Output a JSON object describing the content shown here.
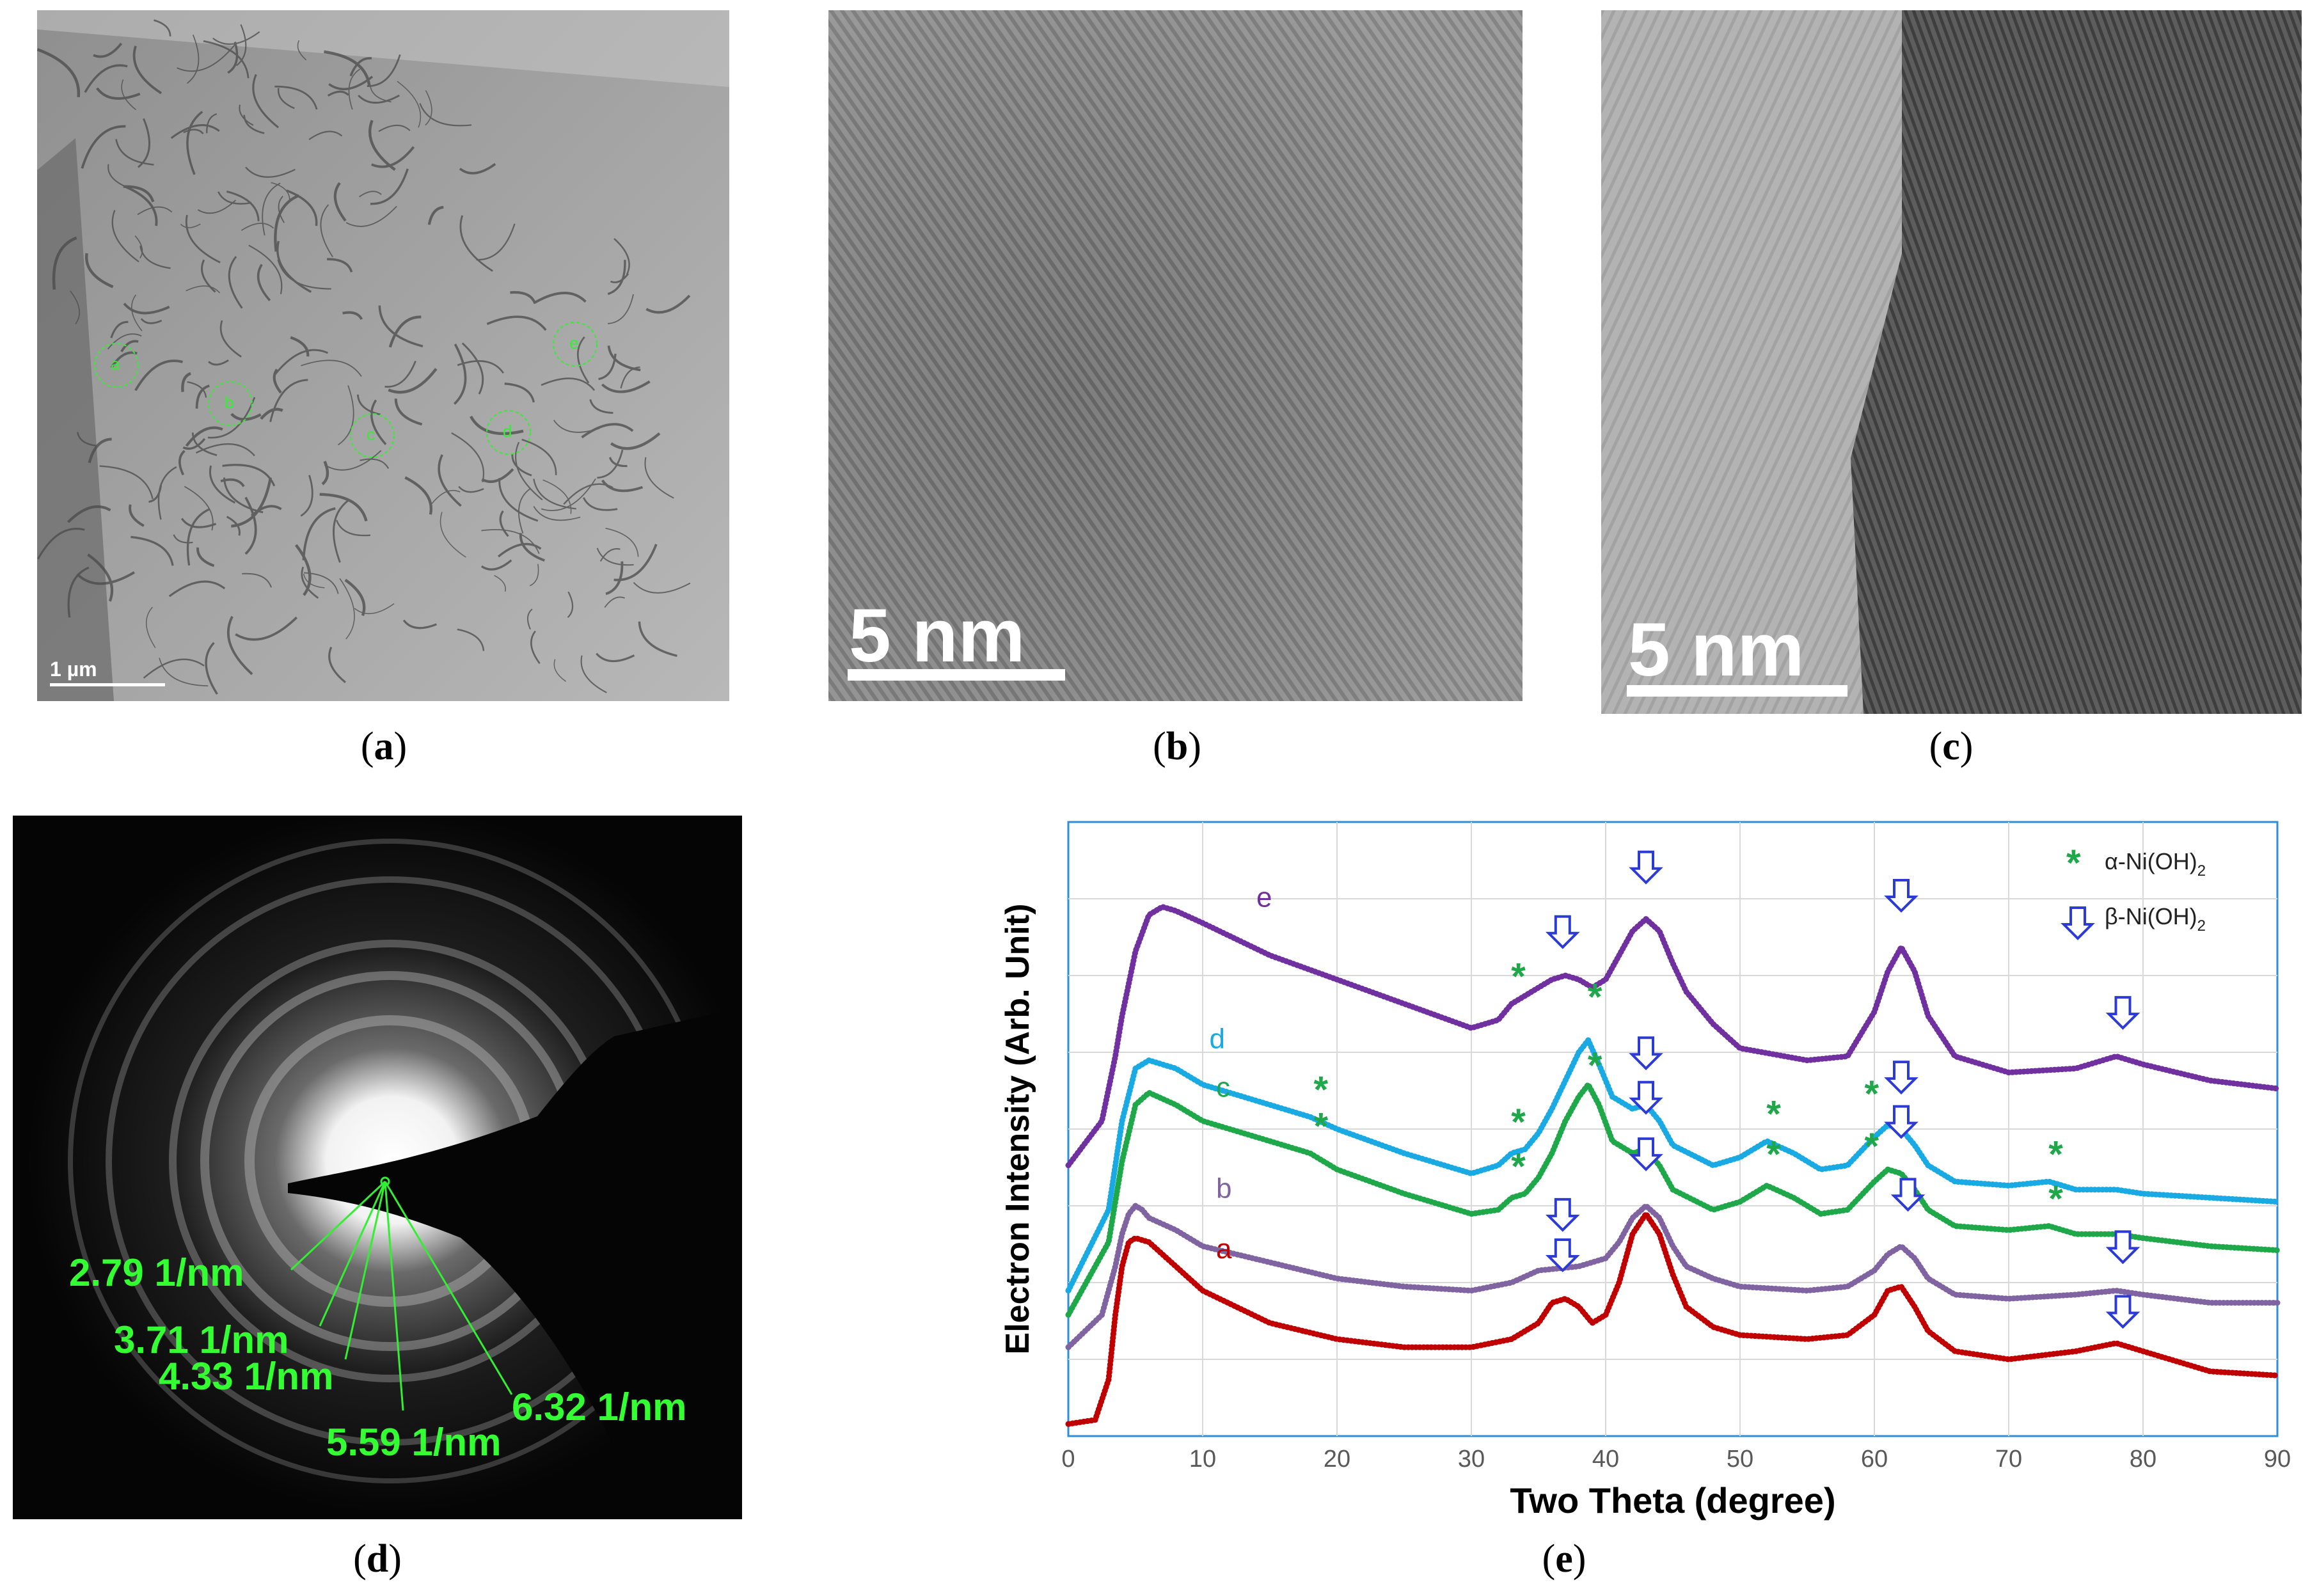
{
  "panels": {
    "a": {
      "caption": "a",
      "scale_bar": "1 µm",
      "regions": [
        "a",
        "b",
        "c",
        "d",
        "e"
      ]
    },
    "b": {
      "caption": "b",
      "scale_bar": "5 nm"
    },
    "c": {
      "caption": "c",
      "scale_bar": "5 nm"
    },
    "d": {
      "caption": "d",
      "rings": [
        "2.79 1/nm",
        "3.71 1/nm",
        "4.33 1/nm",
        "5.59 1/nm",
        "6.32 1/nm"
      ]
    },
    "e": {
      "caption": "e"
    }
  },
  "chart_data": {
    "type": "line",
    "xlabel": "Two Theta (degree)",
    "ylabel": "Electron Intensity (Arb. Unit)",
    "xlim": [
      0,
      90
    ],
    "xticks": [
      0,
      10,
      20,
      30,
      40,
      50,
      60,
      70,
      80,
      90
    ],
    "grid": true,
    "legend": {
      "position": "top-right",
      "entries": [
        {
          "marker": "*",
          "label": "α-Ni(OH)",
          "sub": "2",
          "color": "#1fa84a"
        },
        {
          "marker": "⇩",
          "label": "β-Ni(OH)",
          "sub": "2",
          "color": "#2c3ad6"
        }
      ]
    },
    "series": [
      {
        "name": "a",
        "color": "#c00000",
        "x": [
          0,
          2,
          3,
          3.5,
          4,
          4.5,
          5,
          6,
          8,
          10,
          15,
          20,
          25,
          30,
          33,
          35,
          36,
          37,
          38,
          39,
          40,
          41,
          42,
          43,
          44,
          45,
          46,
          48,
          50,
          55,
          58,
          60,
          61,
          62,
          63,
          64,
          66,
          70,
          75,
          78,
          80,
          85,
          90
        ],
        "y": [
          2.95,
          3.0,
          3.5,
          4.3,
          4.9,
          5.2,
          5.25,
          5.2,
          4.9,
          4.6,
          4.2,
          4.0,
          3.9,
          3.9,
          4.0,
          4.2,
          4.45,
          4.5,
          4.4,
          4.2,
          4.3,
          4.7,
          5.3,
          5.55,
          5.3,
          4.8,
          4.4,
          4.15,
          4.05,
          4.0,
          4.05,
          4.3,
          4.6,
          4.65,
          4.4,
          4.1,
          3.85,
          3.75,
          3.85,
          3.95,
          3.85,
          3.6,
          3.55
        ]
      },
      {
        "name": "b",
        "color": "#8064a2",
        "x": [
          0,
          2.5,
          3.5,
          4,
          4.5,
          5,
          5.5,
          6,
          8,
          10,
          15,
          20,
          25,
          30,
          33,
          35,
          38,
          40,
          41,
          42,
          43,
          44,
          45,
          46,
          48,
          50,
          55,
          58,
          60,
          61,
          62,
          63,
          64,
          66,
          70,
          75,
          78,
          80,
          85,
          90
        ],
        "y": [
          3.9,
          4.3,
          4.9,
          5.3,
          5.55,
          5.65,
          5.6,
          5.5,
          5.35,
          5.15,
          4.95,
          4.75,
          4.65,
          4.6,
          4.7,
          4.85,
          4.9,
          5.0,
          5.2,
          5.5,
          5.65,
          5.5,
          5.15,
          4.9,
          4.75,
          4.65,
          4.6,
          4.65,
          4.85,
          5.05,
          5.15,
          5.0,
          4.75,
          4.55,
          4.5,
          4.55,
          4.6,
          4.55,
          4.45,
          4.45
        ]
      },
      {
        "name": "c",
        "color": "#1fa84a",
        "x": [
          0,
          3,
          4,
          5,
          6,
          8,
          10,
          15,
          18,
          20,
          25,
          30,
          32,
          33,
          34,
          35,
          36,
          37,
          38,
          38.7,
          39.5,
          40.5,
          42,
          43,
          44,
          45,
          48,
          50,
          52,
          54,
          56,
          58,
          60,
          61,
          62,
          63,
          64,
          66,
          70,
          73,
          75,
          78,
          80,
          85,
          90
        ],
        "y": [
          4.3,
          5.2,
          6.2,
          6.9,
          7.05,
          6.9,
          6.7,
          6.45,
          6.3,
          6.1,
          5.8,
          5.55,
          5.6,
          5.75,
          5.8,
          6.0,
          6.3,
          6.7,
          7.0,
          7.15,
          6.9,
          6.45,
          6.3,
          6.35,
          6.15,
          5.85,
          5.6,
          5.7,
          5.9,
          5.75,
          5.55,
          5.6,
          5.95,
          6.1,
          6.05,
          5.85,
          5.6,
          5.4,
          5.35,
          5.4,
          5.3,
          5.3,
          5.25,
          5.15,
          5.1
        ]
      },
      {
        "name": "d",
        "color": "#19a9e3",
        "x": [
          0,
          3,
          4,
          5,
          6,
          8,
          10,
          15,
          18,
          20,
          25,
          30,
          32,
          33,
          34,
          35,
          36,
          37,
          38,
          38.7,
          39.5,
          40.5,
          42,
          43,
          44,
          45,
          48,
          50,
          52,
          54,
          56,
          58,
          60,
          61,
          62,
          63,
          64,
          66,
          70,
          73,
          75,
          78,
          80,
          85,
          90
        ],
        "y": [
          4.6,
          5.6,
          6.7,
          7.35,
          7.45,
          7.35,
          7.15,
          6.9,
          6.75,
          6.6,
          6.3,
          6.05,
          6.15,
          6.3,
          6.35,
          6.55,
          6.85,
          7.2,
          7.55,
          7.7,
          7.4,
          7.0,
          6.85,
          6.9,
          6.7,
          6.4,
          6.15,
          6.25,
          6.45,
          6.3,
          6.1,
          6.15,
          6.5,
          6.65,
          6.6,
          6.4,
          6.15,
          5.95,
          5.9,
          5.95,
          5.85,
          5.85,
          5.8,
          5.75,
          5.7
        ]
      },
      {
        "name": "e",
        "color": "#7030a0",
        "x": [
          0,
          2.5,
          3.5,
          4,
          5,
          6,
          7,
          8,
          10,
          15,
          20,
          25,
          30,
          32,
          33,
          34,
          35,
          36,
          37,
          38,
          39,
          40,
          41,
          42,
          43,
          44,
          45,
          46,
          48,
          50,
          55,
          58,
          60,
          61,
          62,
          63,
          64,
          66,
          70,
          75,
          78,
          80,
          85,
          90
        ],
        "y": [
          6.15,
          6.7,
          7.5,
          8.0,
          8.8,
          9.25,
          9.35,
          9.3,
          9.15,
          8.75,
          8.45,
          8.15,
          7.85,
          7.95,
          8.15,
          8.25,
          8.35,
          8.45,
          8.5,
          8.45,
          8.35,
          8.45,
          8.75,
          9.05,
          9.2,
          9.05,
          8.65,
          8.3,
          7.9,
          7.6,
          7.45,
          7.5,
          8.05,
          8.55,
          8.85,
          8.55,
          8.0,
          7.5,
          7.3,
          7.35,
          7.5,
          7.4,
          7.2,
          7.1
        ]
      }
    ],
    "markers": {
      "alpha": [
        {
          "x": 33.5,
          "y": 8.55
        },
        {
          "x": 39.2,
          "y": 8.3
        },
        {
          "x": 18.8,
          "y": 7.15
        },
        {
          "x": 33.5,
          "y": 6.75
        },
        {
          "x": 39.2,
          "y": 7.45
        },
        {
          "x": 52.5,
          "y": 6.85
        },
        {
          "x": 59.8,
          "y": 7.1
        },
        {
          "x": 73.5,
          "y": 6.35
        },
        {
          "x": 18.8,
          "y": 6.7
        },
        {
          "x": 33.5,
          "y": 6.2
        },
        {
          "x": 52.5,
          "y": 6.35
        },
        {
          "x": 59.8,
          "y": 6.45
        },
        {
          "x": 73.5,
          "y": 5.8
        }
      ],
      "beta": [
        {
          "x": 36.8,
          "y": 8.85
        },
        {
          "x": 43.0,
          "y": 9.65
        },
        {
          "x": 62.0,
          "y": 9.3
        },
        {
          "x": 78.5,
          "y": 7.85
        },
        {
          "x": 43.0,
          "y": 7.35
        },
        {
          "x": 62.0,
          "y": 7.05
        },
        {
          "x": 43.0,
          "y": 6.8
        },
        {
          "x": 62.0,
          "y": 6.5
        },
        {
          "x": 36.8,
          "y": 5.35
        },
        {
          "x": 43.0,
          "y": 6.1
        },
        {
          "x": 62.5,
          "y": 5.6
        },
        {
          "x": 78.5,
          "y": 4.95
        },
        {
          "x": 36.8,
          "y": 4.85
        },
        {
          "x": 78.5,
          "y": 4.15
        }
      ]
    },
    "series_labels": [
      {
        "name": "a",
        "x": 11,
        "y": 5.0
      },
      {
        "name": "b",
        "x": 11,
        "y": 5.75
      },
      {
        "name": "c",
        "x": 11,
        "y": 7.0
      },
      {
        "name": "d",
        "x": 10.5,
        "y": 7.6
      },
      {
        "name": "e",
        "x": 14,
        "y": 9.35
      }
    ]
  }
}
